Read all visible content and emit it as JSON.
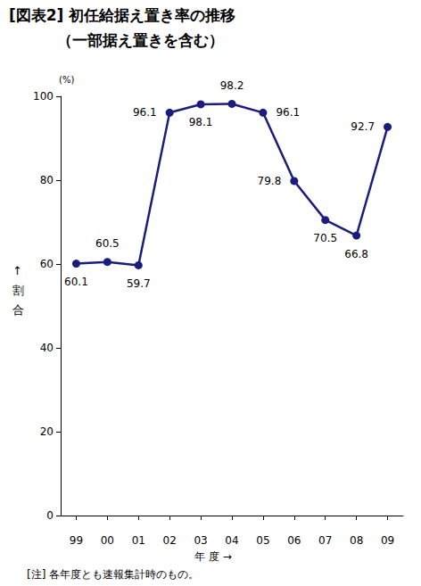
{
  "chart_data": {
    "type": "line",
    "title": "[図表2] 初任給据え置き率の推移",
    "subtitle": "（一部据え置きを含む）",
    "y_unit": "(%)",
    "y_label": "↑割合",
    "x_label": "年 度 →",
    "note": "[注] 各年度とも速報集計時のもの。",
    "categories": [
      "99",
      "00",
      "01",
      "02",
      "03",
      "04",
      "05",
      "06",
      "07",
      "08",
      "09"
    ],
    "values": [
      60.1,
      60.5,
      59.7,
      96.1,
      98.1,
      98.2,
      96.1,
      79.8,
      70.5,
      66.8,
      92.7
    ],
    "color": "#1c1c7c",
    "marker": "circle",
    "data_labels": true,
    "ylim": [
      0,
      100
    ],
    "yticks": [
      0,
      20,
      40,
      60,
      80,
      100
    ],
    "grid": false
  }
}
